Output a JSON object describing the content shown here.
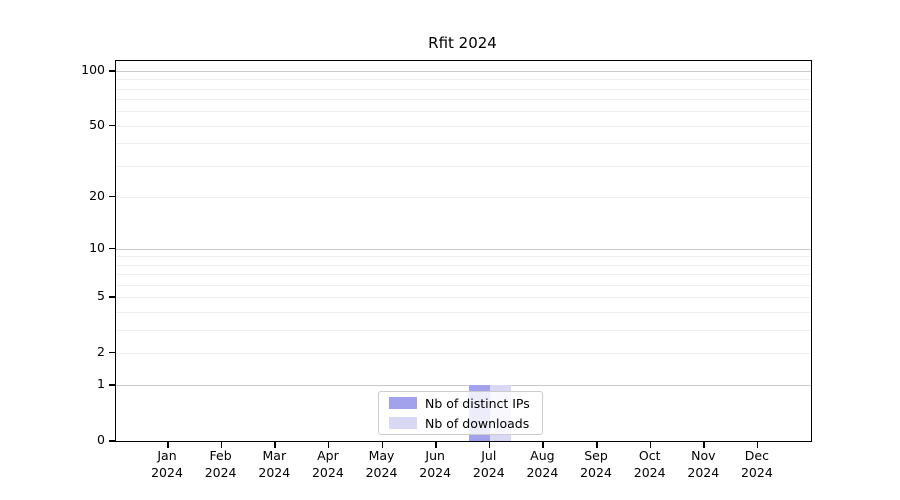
{
  "chart_data": {
    "type": "bar",
    "title": "Rfit 2024",
    "categories": [
      "Jan",
      "Feb",
      "Mar",
      "Apr",
      "May",
      "Jun",
      "Jul",
      "Aug",
      "Sep",
      "Oct",
      "Nov",
      "Dec"
    ],
    "year_label": "2024",
    "series": [
      {
        "name": "Nb of distinct IPs",
        "color": "#a2a2ec",
        "values": [
          0,
          0,
          0,
          0,
          0,
          0,
          1,
          0,
          0,
          0,
          0,
          0
        ]
      },
      {
        "name": "Nb of downloads",
        "color": "#d9d9f6",
        "values": [
          0,
          0,
          0,
          0,
          0,
          0,
          1,
          0,
          0,
          0,
          0,
          0
        ]
      }
    ],
    "y_axis": {
      "scale": "log1p",
      "tick_labels": [
        "0",
        "1",
        "2",
        "5",
        "10",
        "20",
        "50",
        "100"
      ],
      "tick_values": [
        0,
        1,
        2,
        5,
        10,
        20,
        50,
        100
      ],
      "decade_gridlines": [
        1,
        10,
        100
      ],
      "minor_gridlines": [
        2,
        3,
        4,
        5,
        6,
        7,
        8,
        9,
        20,
        30,
        40,
        50,
        60,
        70,
        80,
        90
      ],
      "ylim": [
        0,
        113
      ],
      "grid": "on"
    },
    "x_axis": {
      "tick_label_lines": 2
    },
    "legend": {
      "position": "bottom-center",
      "entries": [
        "Nb of distinct IPs",
        "Nb of downloads"
      ]
    },
    "colors": {
      "background": "#ffffff",
      "axis": "#000000",
      "major_grid": "#c9c9c9",
      "minor_grid": "#efefef"
    }
  }
}
